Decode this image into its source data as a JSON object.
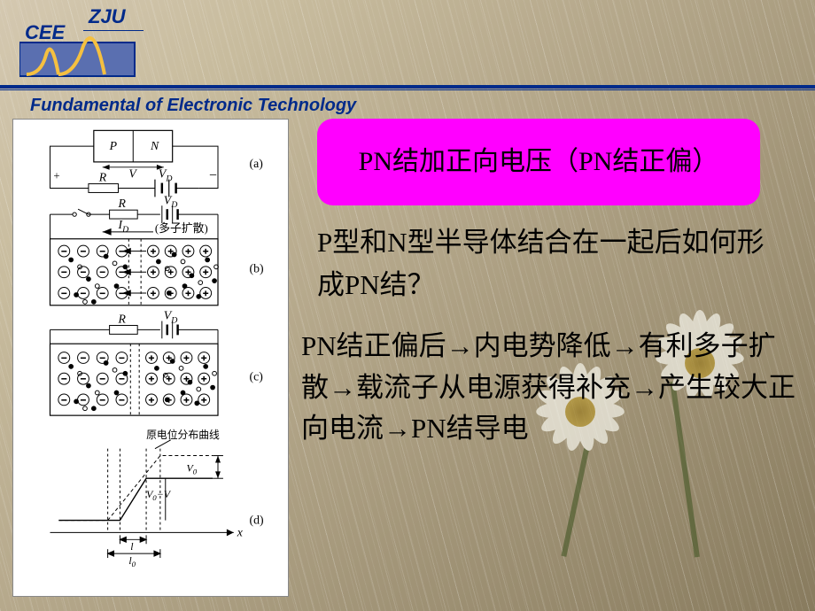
{
  "header": {
    "cee": "CEE",
    "zju": "ZJU",
    "fund": "Fundamental of Electronic Technology",
    "logo_colors": {
      "box_fill": "#5a6fb0",
      "stroke": "#002a8a",
      "wave": "#f5c040"
    }
  },
  "callout": {
    "text": "PN结加正向电压（PN结正偏）",
    "bg": "#ff00ff",
    "text_color": "#000000",
    "fontsize": 30
  },
  "question": {
    "text": "P型和N型半导体结合在一起后如何形成PN结？",
    "fontsize": 31
  },
  "body": {
    "text": "PN结正偏后→内电势降低→有利多子扩散→载流子从电源获得补充→产生较大正向电流→PN结导电",
    "fontsize": 31
  },
  "diagram": {
    "panels": [
      "a",
      "b",
      "c",
      "d"
    ],
    "labels": {
      "P": "P",
      "N": "N",
      "V": "V",
      "R": "R",
      "VD": "V",
      "VD_sub": "D",
      "ID_text": "I",
      "ID_sub": "D",
      "ID_note": "(多子扩散)",
      "a": "(a)",
      "b": "(b)",
      "c": "(c)",
      "d": "(d)",
      "orig_curve": "原电位分布曲线",
      "V0": "V",
      "V0_sub": "0",
      "V0mV": "V",
      "V0mV_sub": "0",
      "minus": "−",
      "Vlbl": "V",
      "l": "l",
      "l0": "l",
      "l0_sub": "0",
      "x": "x"
    },
    "colors": {
      "line": "#000000",
      "bg": "#ffffff",
      "circ": "#000000"
    }
  },
  "background": {
    "gradient": [
      "#d4c8b0",
      "#887b5e"
    ],
    "rain_color": "rgba(255,255,255,0.15)"
  }
}
